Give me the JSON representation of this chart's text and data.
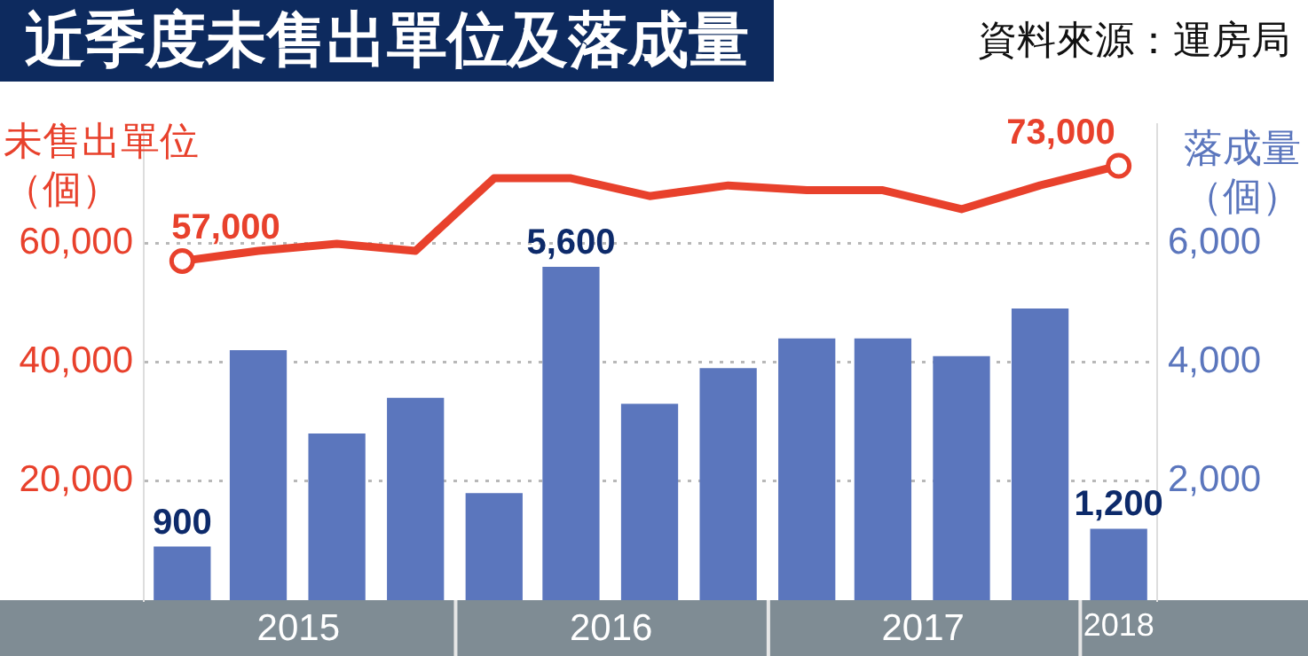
{
  "chart_data": {
    "type": "bar",
    "title": "近季度未售出單位及落成量",
    "annotations": [
      "資料來源：運房局"
    ],
    "ylabel": "未售出單位（個）",
    "y2label": "落成量（個）",
    "x": [
      "2015-02-15",
      "2015-05-15",
      "2015-08-15",
      "2015-11-15",
      "2016-02-15",
      "2016-05-15",
      "2016-08-15",
      "2016-11-15",
      "2017-02-15",
      "2017-05-15",
      "2017-08-15",
      "2017-11-15",
      "2018-02-15"
    ],
    "xlim": [
      "2015-01-01",
      "2018-04-01"
    ],
    "xticks": [
      {
        "value": "2015-07-01",
        "label": "2015"
      },
      {
        "value": "2016-07-01",
        "label": "2016"
      },
      {
        "value": "2017-07-01",
        "label": "2017"
      },
      {
        "value": "2018-02-15",
        "label": "2018"
      }
    ],
    "series": [
      {
        "type": "line",
        "axis": "y",
        "color": "#e8412c",
        "values": [
          57000,
          58700,
          59900,
          58700,
          70900,
          70900,
          67900,
          69700,
          68900,
          68900,
          65700,
          69700,
          73000
        ],
        "value_labels": [
          "57,000",
          null,
          null,
          null,
          null,
          null,
          null,
          null,
          null,
          null,
          null,
          null,
          "73,000"
        ]
      },
      {
        "axis": "y2",
        "color": "#5b76bd",
        "values": [
          900,
          4200,
          2800,
          3400,
          1800,
          5600,
          3300,
          3900,
          4400,
          4400,
          4100,
          4900,
          1200
        ],
        "value_labels": [
          "900",
          null,
          null,
          null,
          null,
          "5,600",
          null,
          null,
          null,
          null,
          null,
          null,
          "1,200"
        ]
      }
    ],
    "ylim": [
      0,
      80000
    ],
    "yticks": [
      {
        "value": 20000,
        "label": "20,000"
      },
      {
        "value": 40000,
        "label": "40,000"
      },
      {
        "value": 60000,
        "label": "60,000"
      }
    ],
    "y2lim": [
      0,
      8000
    ],
    "y2ticks": [
      {
        "value": 2000,
        "label": "2,000"
      },
      {
        "value": 4000,
        "label": "4,000"
      },
      {
        "value": 6000,
        "label": "6,000"
      }
    ],
    "grid": "y",
    "legend": false
  }
}
